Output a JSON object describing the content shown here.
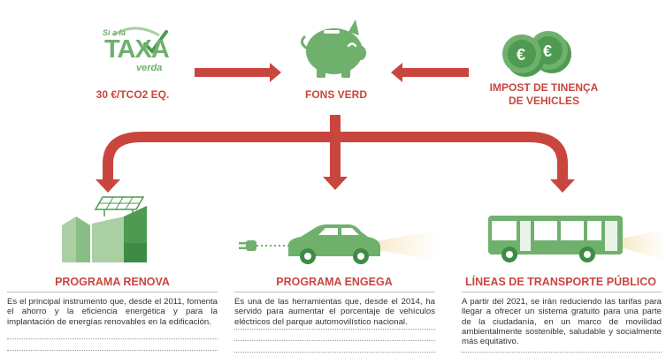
{
  "colors": {
    "accent_red": "#c9463f",
    "green_dark": "#4e9a52",
    "green_mid": "#6fb06d",
    "green_light": "#a9cfa3",
    "text": "#333333"
  },
  "logo": {
    "top_text": "Sí a la",
    "main_text": "TAXA",
    "bottom_text": "verda"
  },
  "sources": [
    {
      "label": "30 €/TCO2 EQ.",
      "icon": "taxa-verda-logo"
    },
    {
      "label": "FONS VERD",
      "icon": "piggy-bank-icon"
    },
    {
      "label": "IMPOST DE TINENÇA\nDE VEHICLES",
      "label_line1": "IMPOST DE TINENÇA",
      "label_line2": "DE VEHICLES",
      "icon": "euro-coins-icon"
    }
  ],
  "coin_symbol": "€",
  "programs": [
    {
      "title": "PROGRAMA RENOVA",
      "icon": "solar-buildings-icon",
      "description": "Es el principal instrumento que, desde el 2011, fomenta el ahorro y la eficiencia energética y para la implantación de energías renovables en la edificación."
    },
    {
      "title": "PROGRAMA ENGEGA",
      "icon": "electric-car-icon",
      "description": "Es una de las herramientas que, desde el 2014, ha servido para aumentar el porcentaje de vehículos eléctricos del parque automovilístico nacional."
    },
    {
      "title": "LÍNEAS DE TRANSPORTE PÚBLICO",
      "icon": "bus-icon",
      "description": "A partir del 2021, se irán reduciendo las tarifas para llegar a ofrecer un sistema gratuito para una parte de la ciudadanía, en un marco de movilidad ambientalmente sostenible, saludable y socialmente más equitativo."
    }
  ]
}
